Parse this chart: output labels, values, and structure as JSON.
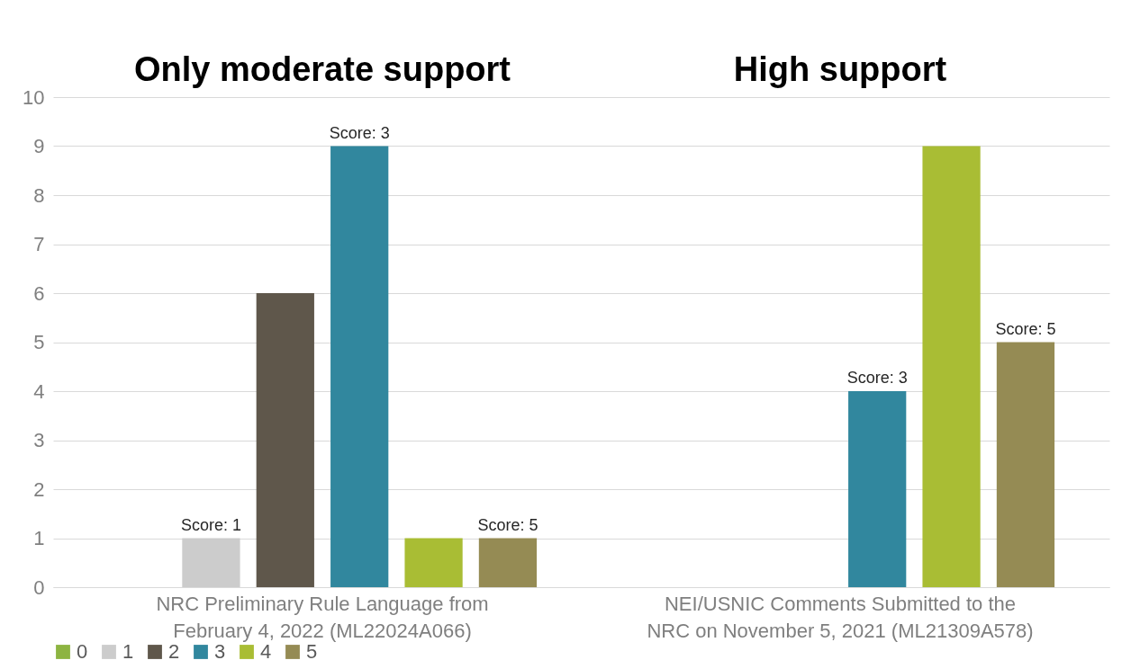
{
  "chart_data": {
    "type": "bar",
    "categories": [
      "NRC Preliminary Rule Language from February 4, 2022 (ML22024A066)",
      "NEI/USNIC Comments Submitted to the NRC on November 5, 2021 (ML21309A578)"
    ],
    "series": [
      {
        "name": "0",
        "color": "#8db441",
        "values": [
          0,
          0
        ]
      },
      {
        "name": "1",
        "color": "#cccccc",
        "values": [
          1,
          0
        ]
      },
      {
        "name": "2",
        "color": "#5f574b",
        "values": [
          6,
          0
        ]
      },
      {
        "name": "3",
        "color": "#31879e",
        "values": [
          9,
          4
        ]
      },
      {
        "name": "4",
        "color": "#a9bd34",
        "values": [
          1,
          9
        ]
      },
      {
        "name": "5",
        "color": "#958b54",
        "values": [
          1,
          5
        ]
      }
    ],
    "annotations": [
      "Only moderate support",
      "High support",
      "Score: 1",
      "Score: 3",
      "Score: 5",
      "Score: 3",
      "Score: 5"
    ],
    "ylim": [
      0,
      10
    ],
    "yticks": [
      0,
      1,
      2,
      3,
      4,
      5,
      6,
      7,
      8,
      9,
      10
    ],
    "grid": "y",
    "legend": "bottom"
  }
}
